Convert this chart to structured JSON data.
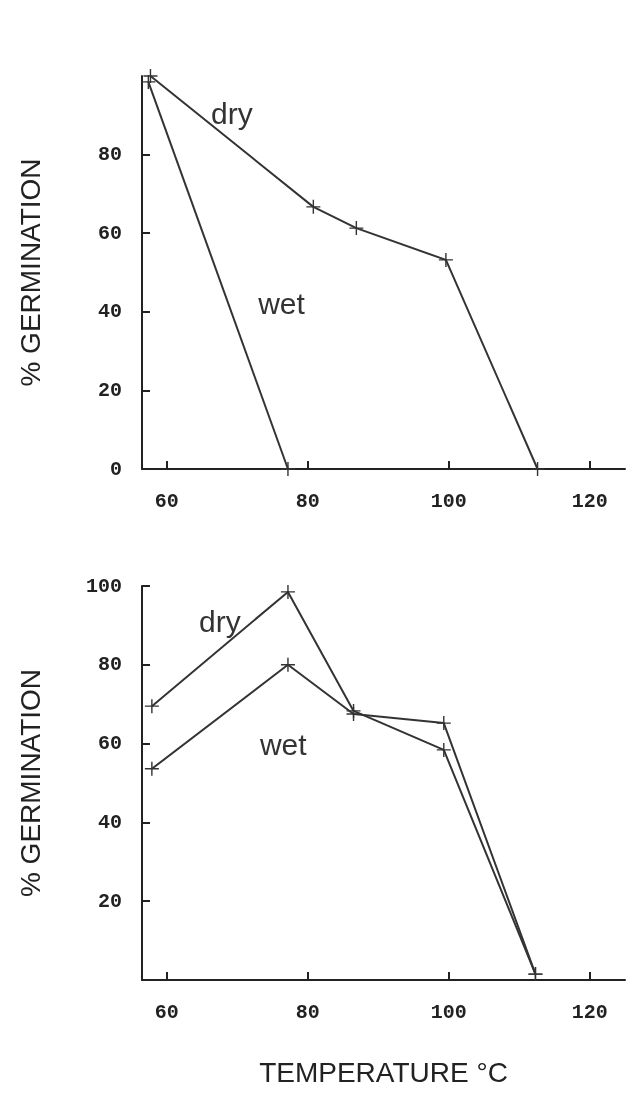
{
  "chart_data": [
    {
      "type": "line",
      "ylabel": "% GERMINATION",
      "xlim": [
        56.5,
        125
      ],
      "xticks": [
        60,
        80,
        100,
        120
      ],
      "ylim": [
        0,
        100
      ],
      "yticks": [
        0,
        20,
        40,
        60,
        80
      ],
      "grid": false,
      "marker": "cross",
      "line_style": "solid",
      "series": [
        {
          "name": "dry",
          "color": "#333333",
          "x": [
            57.7,
            80.8,
            86.9,
            99.6,
            112.6
          ],
          "values": [
            100,
            66.7,
            61.3,
            53.2,
            0
          ]
        },
        {
          "name": "wet",
          "color": "#333333",
          "x": [
            57.4,
            77.2
          ],
          "values": [
            98.5,
            0
          ]
        }
      ]
    },
    {
      "type": "line",
      "ylabel": "% GERMINATION",
      "xlabel": "TEMPERATURE °C",
      "xlim": [
        56.5,
        125
      ],
      "xticks": [
        60,
        80,
        100,
        120
      ],
      "ylim": [
        0,
        100
      ],
      "yticks": [
        20,
        40,
        60,
        80,
        100
      ],
      "grid": false,
      "marker": "cross",
      "line_style": "solid",
      "series": [
        {
          "name": "dry",
          "color": "#333333",
          "x": [
            57.9,
            77.2,
            86.5,
            99.3,
            112.3
          ],
          "values": [
            69.5,
            98.5,
            68.3,
            58.4,
            1.5
          ]
        },
        {
          "name": "wet",
          "color": "#333333",
          "x": [
            57.9,
            77.2,
            86.5,
            99.3,
            112.3
          ],
          "values": [
            53.6,
            80,
            67.5,
            65.2,
            1.5
          ]
        }
      ]
    }
  ]
}
